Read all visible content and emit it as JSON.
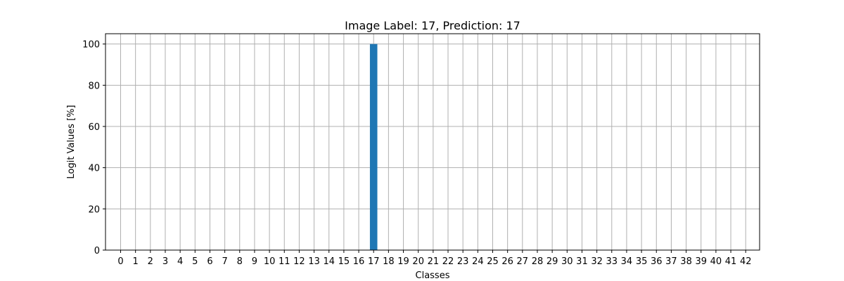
{
  "chart_data": {
    "type": "bar",
    "title": "Image Label: 17, Prediction: 17",
    "xlabel": "Classes",
    "ylabel": "Logit Values [%]",
    "categories": [
      "0",
      "1",
      "2",
      "3",
      "4",
      "5",
      "6",
      "7",
      "8",
      "9",
      "10",
      "11",
      "12",
      "13",
      "14",
      "15",
      "16",
      "17",
      "18",
      "19",
      "20",
      "21",
      "22",
      "23",
      "24",
      "25",
      "26",
      "27",
      "28",
      "29",
      "30",
      "31",
      "32",
      "33",
      "34",
      "35",
      "36",
      "37",
      "38",
      "39",
      "40",
      "41",
      "42"
    ],
    "values": [
      0,
      0,
      0,
      0,
      0,
      0,
      0,
      0,
      0,
      0,
      0,
      0,
      0,
      0,
      0,
      0,
      0,
      100,
      0,
      0,
      0,
      0,
      0,
      0,
      0,
      0,
      0,
      0,
      0,
      0,
      0,
      0,
      0,
      0,
      0,
      0,
      0,
      0,
      0,
      0,
      0,
      0,
      0
    ],
    "ylim": [
      0,
      105
    ],
    "yticks": [
      0,
      20,
      40,
      60,
      80,
      100
    ],
    "ytick_labels": [
      "0",
      "20",
      "40",
      "60",
      "80",
      "100"
    ],
    "grid": true,
    "bar_color": "#1f77b4"
  }
}
